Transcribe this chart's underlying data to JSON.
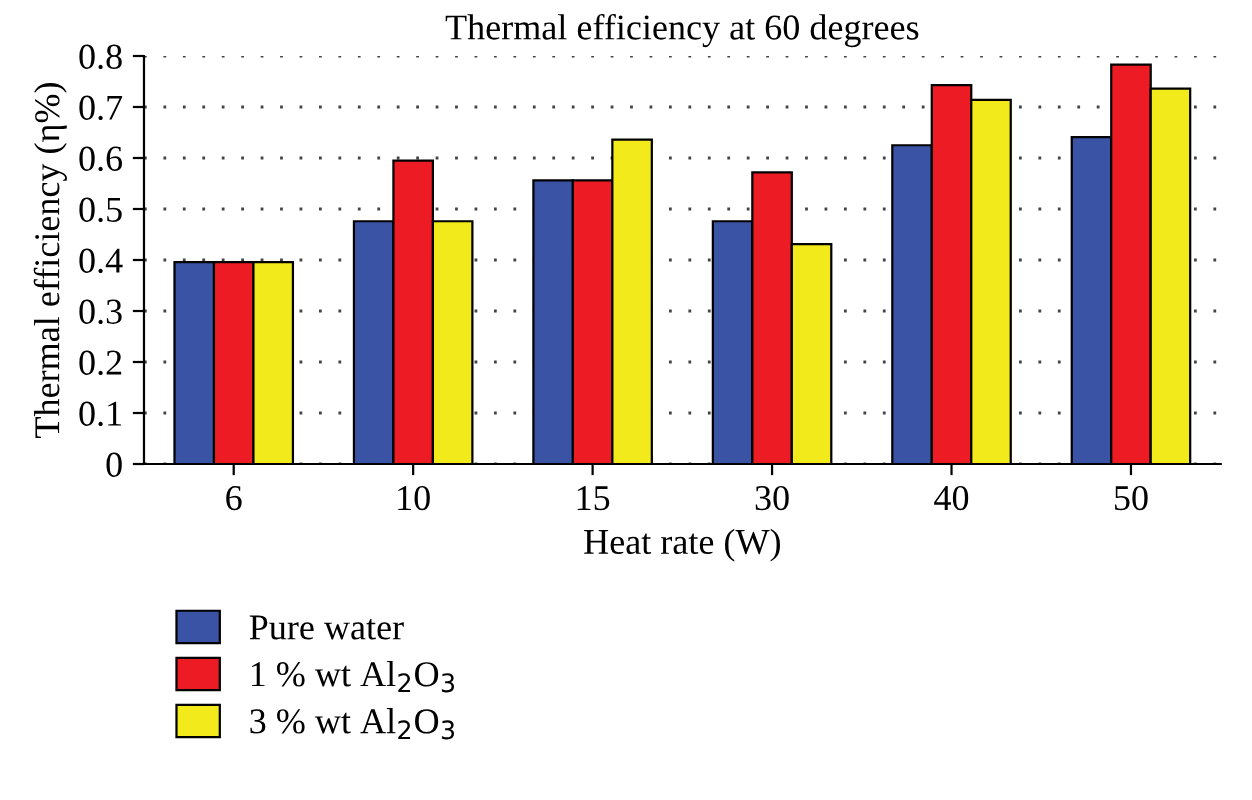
{
  "chart_data": {
    "type": "bar",
    "title": "Thermal efficiency at 60 degrees",
    "xlabel": "Heat rate (W)",
    "ylabel": "Thermal efficiency (η%)",
    "categories": [
      "6",
      "10",
      "15",
      "30",
      "40",
      "50"
    ],
    "series": [
      {
        "name": "Pure water",
        "color": "#3a53a4",
        "values": [
          0.396,
          0.476,
          0.556,
          0.476,
          0.625,
          0.641
        ]
      },
      {
        "name": "1 % wt Al$_{2}$O$_{3}$",
        "color": "#ed1c24",
        "values": [
          0.396,
          0.595,
          0.556,
          0.572,
          0.743,
          0.783
        ]
      },
      {
        "name": "3 % wt Al$_{2}$O$_{3}$",
        "color": "#f2ea1a",
        "values": [
          0.396,
          0.476,
          0.636,
          0.431,
          0.714,
          0.736
        ]
      }
    ],
    "ylim": [
      0,
      0.8
    ],
    "yticks": [
      0,
      0.1,
      0.2,
      0.3,
      0.4,
      0.5,
      0.6,
      0.7,
      0.8
    ],
    "grid": "y",
    "legend": "bottom"
  }
}
